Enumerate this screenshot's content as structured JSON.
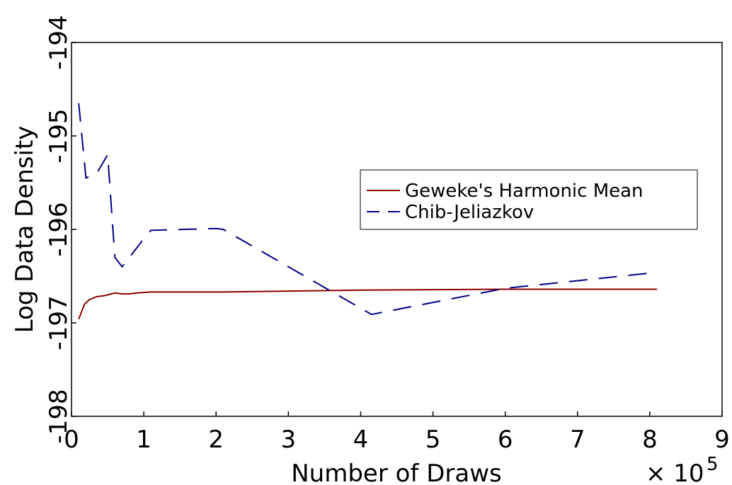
{
  "chart_data": {
    "type": "line",
    "xlabel": "Number of Draws",
    "ylabel": "Log Data Density",
    "x_multiplier": "× 10",
    "x_multiplier_exp": "5",
    "xlim": [
      0,
      9
    ],
    "ylim": [
      -198,
      -194
    ],
    "xticks": [
      0,
      1,
      2,
      3,
      4,
      5,
      6,
      7,
      8,
      9
    ],
    "xtick_labels": [
      "0",
      "1",
      "2",
      "3",
      "4",
      "5",
      "6",
      "7",
      "8",
      "9"
    ],
    "yticks": [
      -198,
      -197,
      -196,
      -195,
      -194
    ],
    "ytick_labels": [
      "-198",
      "-197",
      "-196",
      "-195",
      "-194"
    ],
    "grid": false,
    "legend_position": "right",
    "series": [
      {
        "name": "Geweke's Harmonic Mean",
        "color": "#8b0000",
        "style": "solid",
        "x": [
          0.1,
          0.18,
          0.25,
          0.35,
          0.45,
          0.55,
          0.6,
          0.7,
          0.8,
          0.9,
          1.0,
          1.1,
          1.5,
          2.1,
          3.0,
          4.0,
          5.0,
          6.0,
          7.0,
          8.1
        ],
        "y": [
          -196.96,
          -196.8,
          -196.75,
          -196.72,
          -196.71,
          -196.69,
          -196.68,
          -196.69,
          -196.69,
          -196.68,
          -196.675,
          -196.67,
          -196.67,
          -196.67,
          -196.66,
          -196.65,
          -196.645,
          -196.64,
          -196.64,
          -196.64
        ]
      },
      {
        "name": "Chib-Jeliazkov",
        "color": "#00007f",
        "style": "dashed",
        "x": [
          0.1,
          0.2,
          0.35,
          0.5,
          0.6,
          0.7,
          1.0,
          1.1,
          2.0,
          2.1,
          4.15,
          6.0,
          8.1
        ],
        "y": [
          -194.65,
          -195.45,
          -195.4,
          -195.2,
          -196.3,
          -196.4,
          -196.1,
          -196.01,
          -195.99,
          -196.0,
          -196.91,
          -196.63,
          -196.46
        ]
      }
    ]
  }
}
